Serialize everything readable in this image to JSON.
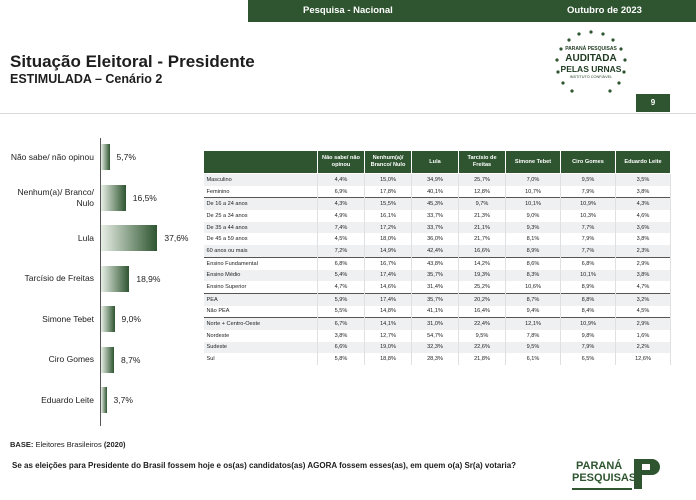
{
  "header": {
    "left": "Pesquisa - Nacional",
    "right": "Outubro de 2023"
  },
  "title": "Situação Eleitoral - Presidente",
  "subtitle": "ESTIMULADA – Cenário 2",
  "seal": {
    "line1": "PARANÁ PESQUISAS",
    "line2": "AUDITADA",
    "line3": "PELAS URNAS",
    "line4": "INSTITUTO CONFIÁVEL"
  },
  "page_number": "9",
  "colors": {
    "brand_green": "#2e5530",
    "table_row_shade": "#eef0f2"
  },
  "chart_data": [
    {
      "type": "bar",
      "orientation": "horizontal",
      "categories": [
        "Não sabe/ não opinou",
        "Nenhum(a)/ Branco/ Nulo",
        "Lula",
        "Tarcísio de Freitas",
        "Simone Tebet",
        "Ciro Gomes",
        "Eduardo Leite"
      ],
      "values": [
        5.7,
        16.5,
        37.6,
        18.9,
        9.0,
        8.7,
        3.7
      ],
      "labels": [
        "5,7%",
        "16,5%",
        "37,6%",
        "18,9%",
        "9,0%",
        "8,7%",
        "3,7%"
      ],
      "xlim": [
        0,
        40
      ]
    },
    {
      "type": "table",
      "columns": [
        "",
        "Não sabe/ não opinou",
        "Nenhum(a)/ Branco/ Nulo",
        "Lula",
        "Tarcísio de Freitas",
        "Simone Tebet",
        "Ciro Gomes",
        "Eduardo Leite"
      ],
      "rows": [
        [
          "Masculino",
          "4,4%",
          "15,0%",
          "34,9%",
          "25,7%",
          "7,0%",
          "9,5%",
          "3,5%"
        ],
        [
          "Feminino",
          "6,9%",
          "17,8%",
          "40,1%",
          "12,8%",
          "10,7%",
          "7,9%",
          "3,8%"
        ],
        [
          "De 16 a 24 anos",
          "4,3%",
          "15,5%",
          "45,3%",
          "9,7%",
          "10,1%",
          "10,9%",
          "4,3%"
        ],
        [
          "De 25 a 34 anos",
          "4,9%",
          "16,1%",
          "33,7%",
          "21,3%",
          "9,0%",
          "10,3%",
          "4,6%"
        ],
        [
          "De 35 a 44 anos",
          "7,4%",
          "17,2%",
          "33,7%",
          "21,1%",
          "9,3%",
          "7,7%",
          "3,6%"
        ],
        [
          "De 45 a 59 anos",
          "4,5%",
          "18,0%",
          "36,0%",
          "21,7%",
          "8,1%",
          "7,9%",
          "3,8%"
        ],
        [
          "60 anos ou mais",
          "7,2%",
          "14,9%",
          "42,4%",
          "16,6%",
          "8,9%",
          "7,7%",
          "2,3%"
        ],
        [
          "Ensino Fundamental",
          "6,8%",
          "16,7%",
          "43,8%",
          "14,2%",
          "8,6%",
          "6,8%",
          "2,9%"
        ],
        [
          "Ensino Médio",
          "5,4%",
          "17,4%",
          "35,7%",
          "19,3%",
          "8,3%",
          "10,1%",
          "3,8%"
        ],
        [
          "Ensino Superior",
          "4,7%",
          "14,6%",
          "31,4%",
          "25,2%",
          "10,6%",
          "8,9%",
          "4,7%"
        ],
        [
          "PEA",
          "5,9%",
          "17,4%",
          "35,7%",
          "20,2%",
          "8,7%",
          "8,8%",
          "3,2%"
        ],
        [
          "Não PEA",
          "5,5%",
          "14,8%",
          "41,1%",
          "16,4%",
          "9,4%",
          "8,4%",
          "4,5%"
        ],
        [
          "Norte + Centro-Oeste",
          "6,7%",
          "14,1%",
          "31,0%",
          "22,4%",
          "12,1%",
          "10,9%",
          "2,9%"
        ],
        [
          "Nordeste",
          "3,8%",
          "12,7%",
          "54,7%",
          "9,5%",
          "7,8%",
          "9,8%",
          "1,6%"
        ],
        [
          "Sudeste",
          "6,6%",
          "19,0%",
          "32,3%",
          "22,6%",
          "9,5%",
          "7,9%",
          "2,2%"
        ],
        [
          "Sul",
          "5,8%",
          "18,8%",
          "28,3%",
          "21,8%",
          "6,1%",
          "6,5%",
          "12,6%"
        ]
      ],
      "group_starts": [
        0,
        2,
        7,
        10,
        12
      ]
    }
  ],
  "base": {
    "label": "BASE:",
    "text": "Eleitores Brasileiros",
    "count": "(2020)"
  },
  "question": "Se as eleições para Presidente do Brasil fossem hoje e os(as) candidatos(as) AGORA fossem esses(as), em quem o(a) Sr(a) votaria?",
  "logo": {
    "line1": "PARANÁ",
    "line2": "PESQUISAS"
  }
}
